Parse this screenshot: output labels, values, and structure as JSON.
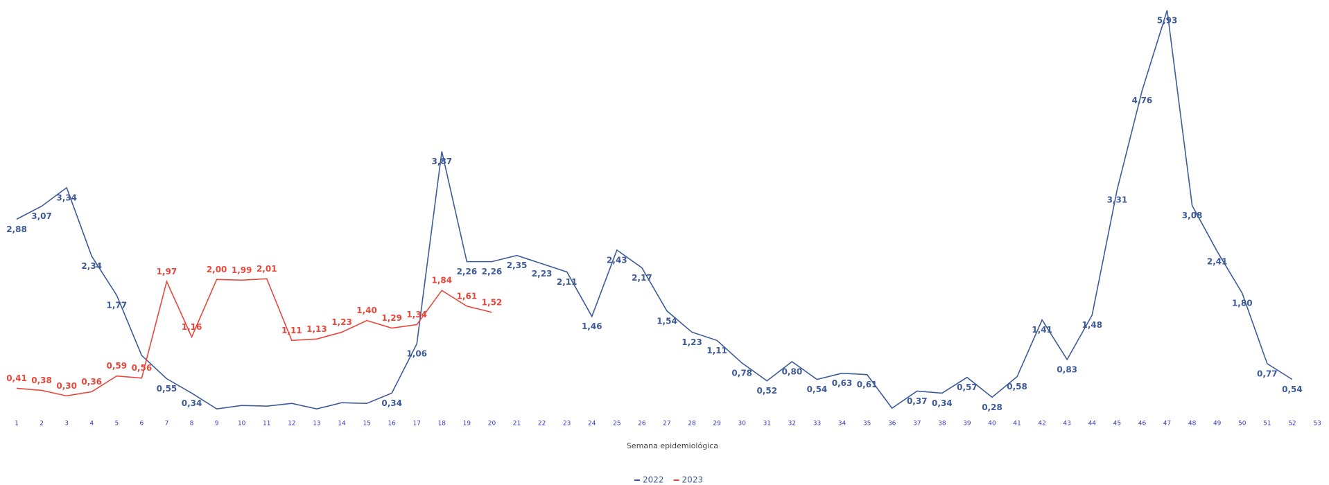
{
  "chart_data": {
    "type": "line",
    "xlabel": "Semana epidemiológica",
    "categories": [
      "1",
      "2",
      "3",
      "4",
      "5",
      "6",
      "7",
      "8",
      "9",
      "10",
      "11",
      "12",
      "13",
      "14",
      "15",
      "16",
      "17",
      "18",
      "19",
      "20",
      "21",
      "22",
      "23",
      "24",
      "25",
      "26",
      "27",
      "28",
      "29",
      "30",
      "31",
      "32",
      "33",
      "34",
      "35",
      "36",
      "37",
      "38",
      "39",
      "40",
      "41",
      "42",
      "43",
      "44",
      "45",
      "46",
      "47",
      "48",
      "49",
      "50",
      "51",
      "52",
      "53"
    ],
    "ylim": [
      0,
      6
    ],
    "series": [
      {
        "name": "2022",
        "color": "#3d5a99",
        "values": [
          2.88,
          3.07,
          3.34,
          2.34,
          1.77,
          0.89,
          0.55,
          0.34,
          0.11,
          0.16,
          0.15,
          0.19,
          0.11,
          0.2,
          0.19,
          0.34,
          1.06,
          3.87,
          2.26,
          2.26,
          2.35,
          2.23,
          2.11,
          1.46,
          2.43,
          2.17,
          1.54,
          1.23,
          1.11,
          0.78,
          0.52,
          0.8,
          0.54,
          0.63,
          0.61,
          0.12,
          0.37,
          0.34,
          0.57,
          0.28,
          0.58,
          1.41,
          0.83,
          1.48,
          3.31,
          4.76,
          5.93,
          3.08,
          2.41,
          1.8,
          0.77,
          0.54,
          null
        ],
        "value_labels": [
          "2,88",
          "3,07",
          "3,34",
          "2,34",
          "1,77",
          null,
          "0,55",
          "0,34",
          null,
          null,
          null,
          null,
          null,
          null,
          null,
          "0,34",
          "1,06",
          "3,87",
          "2,26",
          "2,26",
          "2,35",
          "2,23",
          "2,11",
          "1,46",
          "2,43",
          "2,17",
          "1,54",
          "1,23",
          "1,11",
          "0,78",
          "0,52",
          "0,80",
          "0,54",
          "0,63",
          "0,61",
          null,
          "0,37",
          "0,34",
          "0,57",
          "0,28",
          "0,58",
          "1,41",
          "0,83",
          "1,48",
          "3,31",
          "4,76",
          "5,93",
          "3,08",
          "2,41",
          "1,80",
          "0,77",
          "0,54",
          null
        ]
      },
      {
        "name": "2023",
        "color": "#e8483c",
        "values": [
          0.41,
          0.38,
          0.3,
          0.36,
          0.59,
          0.56,
          1.97,
          1.16,
          2.0,
          1.99,
          2.01,
          1.11,
          1.13,
          1.23,
          1.4,
          1.29,
          1.34,
          1.84,
          1.61,
          1.52,
          null,
          null,
          null,
          null,
          null,
          null,
          null,
          null,
          null,
          null,
          null,
          null,
          null,
          null,
          null,
          null,
          null,
          null,
          null,
          null,
          null,
          null,
          null,
          null,
          null,
          null,
          null,
          null,
          null,
          null,
          null,
          null,
          null
        ],
        "value_labels": [
          "0,41",
          "0,38",
          "0,30",
          "0,36",
          "0,59",
          "0,56",
          "1,97",
          "1,16",
          "2,00",
          "1,99",
          "2,01",
          "1,11",
          "1,13",
          "1,23",
          "1,40",
          "1,29",
          "1,34",
          "1,84",
          "1,61",
          "1,52",
          null,
          null,
          null,
          null,
          null,
          null,
          null,
          null,
          null,
          null,
          null,
          null,
          null,
          null,
          null,
          null,
          null,
          null,
          null,
          null,
          null,
          null,
          null,
          null,
          null,
          null,
          null,
          null,
          null,
          null,
          null,
          null,
          null
        ]
      }
    ]
  }
}
